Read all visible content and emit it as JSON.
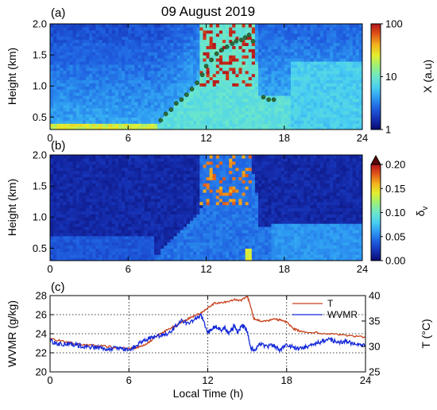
{
  "figure": {
    "title": "09 August 2019"
  },
  "chart_data": [
    {
      "panel": "(a)",
      "type": "heatmap",
      "xlabel": "",
      "ylabel": "Height (km)",
      "xlim": [
        0,
        24
      ],
      "ylim": [
        0.3,
        2.0
      ],
      "xticks": [
        "0",
        "6",
        "12",
        "18",
        "24"
      ],
      "yticks": [
        "0.5",
        "1.0",
        "1.5",
        "2.0"
      ],
      "colorbar": {
        "label": "X (a.u)",
        "scale": "log",
        "range": [
          1,
          100
        ],
        "ticks": [
          "1",
          "10",
          "100"
        ],
        "colors": [
          "#0a0a6e",
          "#1631b4",
          "#1f5fe0",
          "#2e9bf2",
          "#4ad0f0",
          "#6de7c9",
          "#9bf07a",
          "#e4ee2e",
          "#f2b31d",
          "#e2571a",
          "#b3131a"
        ]
      },
      "overlay_points": {
        "color": "#2c6b3a",
        "t": [
          8.5,
          8.9,
          9.3,
          9.7,
          10.1,
          10.5,
          10.9,
          11.3,
          11.7,
          12.0,
          12.4,
          12.8,
          13.2,
          13.6,
          14.0,
          14.3,
          14.7,
          15.0,
          15.3,
          15.6,
          16.4,
          16.8,
          17.2
        ],
        "h": [
          0.45,
          0.55,
          0.62,
          0.72,
          0.78,
          0.86,
          0.95,
          1.05,
          1.18,
          1.32,
          1.42,
          1.52,
          1.58,
          1.63,
          1.68,
          1.72,
          1.74,
          1.78,
          1.82,
          1.72,
          0.82,
          0.78,
          0.78
        ]
      }
    },
    {
      "panel": "(b)",
      "type": "heatmap",
      "xlabel": "",
      "ylabel": "Height (km)",
      "xlim": [
        0,
        24
      ],
      "ylim": [
        0.3,
        2.0
      ],
      "xticks": [
        "0",
        "6",
        "12",
        "18",
        "24"
      ],
      "yticks": [
        "0.5",
        "1.0",
        "1.5",
        "2.0"
      ],
      "colorbar": {
        "label": "δ",
        "label_subscript": "v",
        "range": [
          0.0,
          0.2
        ],
        "ticks": [
          "0.00",
          "0.05",
          "0.10",
          "0.15",
          "0.20"
        ],
        "colors": [
          "#0a0a6e",
          "#1631b4",
          "#1f5fe0",
          "#2e9bf2",
          "#4ad0f0",
          "#6de7c9",
          "#9bf07a",
          "#e4ee2e",
          "#f2b31d",
          "#e2571a",
          "#b3131a"
        ]
      }
    },
    {
      "panel": "(c)",
      "type": "line",
      "xlabel": "Local Time (h)",
      "ylabel": "WVMR (g/kg)",
      "y2label": "T (°C)",
      "xlim": [
        0,
        24
      ],
      "ylim": [
        20,
        28
      ],
      "y2lim": [
        25,
        40
      ],
      "xticks": [
        "0",
        "6",
        "12",
        "18",
        "24"
      ],
      "yticks": [
        "20",
        "22",
        "24",
        "26",
        "28"
      ],
      "y2ticks": [
        "25",
        "30",
        "35",
        "40"
      ],
      "grid": "dotted",
      "legend": "top-right",
      "series": [
        {
          "name": "T",
          "axis": "right",
          "color": "#c8401a",
          "x": [
            0,
            1,
            2,
            3,
            4,
            5,
            6,
            6.5,
            7,
            7.5,
            8,
            8.5,
            9,
            9.5,
            10,
            10.5,
            11,
            11.5,
            12,
            12.5,
            13,
            13.5,
            14,
            14.5,
            15,
            15.2,
            15.5,
            16,
            16.5,
            17,
            17.5,
            18,
            18.5,
            19,
            20,
            21,
            22,
            23,
            24
          ],
          "y": [
            31.5,
            31.0,
            30.5,
            30.3,
            30.1,
            29.8,
            29.6,
            29.7,
            30.1,
            30.8,
            31.8,
            32.6,
            33.4,
            34.0,
            34.8,
            35.4,
            36.0,
            36.6,
            37.5,
            38.5,
            38.6,
            38.8,
            39.2,
            39.0,
            39.8,
            38.5,
            35.5,
            35.0,
            35.0,
            35.4,
            35.2,
            34.8,
            33.5,
            33.0,
            32.8,
            32.5,
            32.3,
            32.0,
            31.8
          ]
        },
        {
          "name": "WVMR",
          "axis": "left",
          "color": "#1428d8",
          "x": [
            0,
            0.5,
            1,
            1.5,
            2,
            2.5,
            3,
            3.5,
            4,
            4.5,
            5,
            5.5,
            6,
            6.5,
            7,
            7.5,
            8,
            8.5,
            9,
            9.5,
            10,
            10.5,
            11,
            11.5,
            12,
            12.3,
            12.6,
            13,
            13.3,
            13.6,
            14,
            14.3,
            14.6,
            15,
            15.3,
            15.6,
            16,
            16.5,
            17,
            17.5,
            18,
            18.5,
            19,
            19.5,
            20,
            20.5,
            21,
            21.5,
            22,
            22.5,
            23,
            23.5,
            24
          ],
          "y": [
            23.3,
            22.9,
            22.9,
            23.0,
            22.8,
            22.7,
            22.6,
            22.6,
            22.5,
            22.4,
            22.5,
            22.4,
            22.3,
            22.7,
            23.2,
            23.5,
            23.6,
            23.9,
            23.9,
            24.7,
            25.4,
            25.1,
            25.5,
            25.9,
            24.0,
            24.5,
            24.8,
            24.4,
            24.6,
            24.0,
            24.8,
            24.1,
            24.9,
            24.3,
            22.5,
            22.3,
            22.9,
            22.6,
            22.8,
            22.3,
            22.9,
            22.6,
            22.4,
            22.6,
            22.9,
            23.1,
            23.4,
            23.3,
            23.1,
            23.2,
            23.0,
            22.9,
            22.7
          ]
        }
      ]
    }
  ]
}
